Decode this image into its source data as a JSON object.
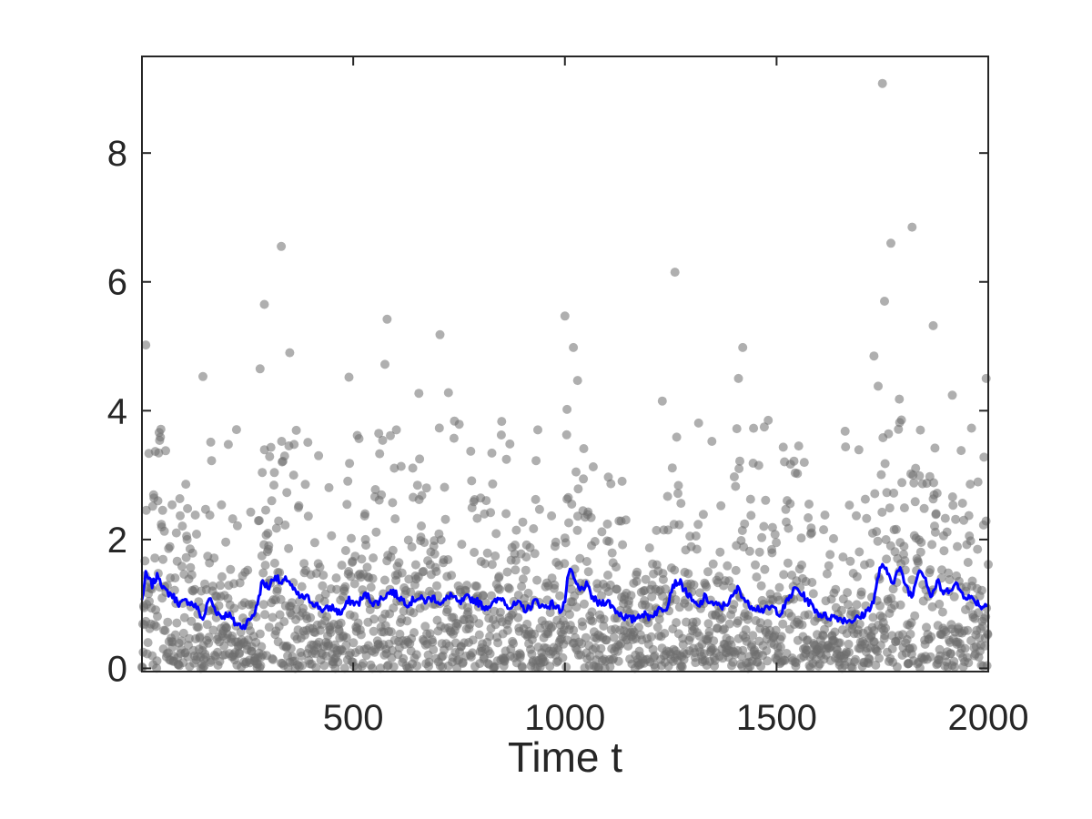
{
  "chart_data": {
    "type": "scatter",
    "title": "",
    "xlabel": "Time t",
    "ylabel": "",
    "xlim": [
      1,
      2000
    ],
    "ylim": [
      -0.05,
      9.5
    ],
    "x_ticks": [
      500,
      1000,
      1500,
      2000
    ],
    "x_tick_labels": [
      "500",
      "1000",
      "1500",
      "2000"
    ],
    "y_ticks": [
      0,
      2,
      4,
      6,
      8
    ],
    "y_tick_labels": [
      "0",
      "2",
      "4",
      "6",
      "8"
    ],
    "grid": false,
    "legend": "none",
    "series": [
      {
        "kind": "scatter",
        "color": "#6e6e6e",
        "opacity": 0.55,
        "n_points": 2000,
        "notable_points": [
          {
            "x": 1750,
            "y": 9.08
          },
          {
            "x": 1820,
            "y": 6.85
          },
          {
            "x": 330,
            "y": 6.55
          },
          {
            "x": 1770,
            "y": 6.6
          },
          {
            "x": 1260,
            "y": 6.15
          },
          {
            "x": 290,
            "y": 5.65
          },
          {
            "x": 1755,
            "y": 5.7
          },
          {
            "x": 580,
            "y": 5.42
          },
          {
            "x": 1000,
            "y": 5.47
          },
          {
            "x": 1870,
            "y": 5.32
          },
          {
            "x": 705,
            "y": 5.18
          },
          {
            "x": 10,
            "y": 5.02
          },
          {
            "x": 1020,
            "y": 4.98
          },
          {
            "x": 1420,
            "y": 4.98
          },
          {
            "x": 350,
            "y": 4.9
          },
          {
            "x": 1730,
            "y": 4.85
          },
          {
            "x": 575,
            "y": 4.72
          },
          {
            "x": 280,
            "y": 4.65
          },
          {
            "x": 145,
            "y": 4.53
          },
          {
            "x": 490,
            "y": 4.52
          },
          {
            "x": 1410,
            "y": 4.5
          },
          {
            "x": 1995,
            "y": 4.5
          },
          {
            "x": 1030,
            "y": 4.47
          },
          {
            "x": 1740,
            "y": 4.38
          },
          {
            "x": 655,
            "y": 4.27
          },
          {
            "x": 725,
            "y": 4.28
          },
          {
            "x": 1915,
            "y": 4.24
          },
          {
            "x": 1230,
            "y": 4.15
          },
          {
            "x": 1790,
            "y": 4.18
          },
          {
            "x": 1005,
            "y": 4.02
          }
        ]
      },
      {
        "kind": "line",
        "color": "#0000ff",
        "description": "running mean of the scatter values",
        "x": [
          1,
          10,
          25,
          40,
          55,
          70,
          90,
          110,
          130,
          145,
          160,
          175,
          190,
          205,
          220,
          240,
          255,
          270,
          285,
          300,
          315,
          330,
          345,
          360,
          375,
          390,
          410,
          430,
          450,
          470,
          490,
          510,
          530,
          550,
          570,
          590,
          610,
          630,
          650,
          670,
          690,
          710,
          730,
          750,
          770,
          790,
          810,
          830,
          850,
          870,
          890,
          910,
          930,
          950,
          970,
          990,
          1000,
          1010,
          1020,
          1035,
          1050,
          1065,
          1080,
          1100,
          1120,
          1140,
          1160,
          1180,
          1200,
          1220,
          1240,
          1255,
          1270,
          1285,
          1300,
          1315,
          1330,
          1350,
          1370,
          1390,
          1410,
          1430,
          1450,
          1470,
          1490,
          1510,
          1530,
          1545,
          1560,
          1580,
          1600,
          1620,
          1640,
          1660,
          1680,
          1700,
          1715,
          1730,
          1745,
          1760,
          1775,
          1790,
          1805,
          1820,
          1835,
          1850,
          1865,
          1880,
          1895,
          1910,
          1925,
          1940,
          1955,
          1970,
          1985,
          2000
        ],
        "y": [
          1.05,
          1.45,
          1.3,
          1.45,
          1.2,
          1.15,
          1.0,
          1.05,
          0.95,
          0.75,
          1.1,
          0.9,
          0.8,
          0.85,
          0.7,
          0.65,
          0.75,
          0.9,
          1.35,
          1.25,
          1.45,
          1.3,
          1.4,
          1.2,
          1.1,
          1.1,
          1.0,
          0.9,
          0.95,
          0.85,
          1.05,
          1.0,
          1.15,
          1.0,
          1.1,
          1.2,
          1.1,
          1.0,
          1.1,
          1.05,
          1.1,
          1.0,
          1.15,
          1.0,
          1.1,
          1.05,
          0.95,
          1.0,
          1.1,
          0.95,
          1.0,
          0.9,
          1.05,
          0.95,
          1.0,
          0.9,
          1.05,
          1.55,
          1.4,
          1.2,
          1.3,
          1.1,
          1.0,
          1.05,
          0.9,
          0.8,
          0.75,
          0.85,
          0.8,
          0.9,
          0.95,
          1.3,
          1.35,
          1.2,
          1.05,
          0.95,
          1.1,
          1.0,
          0.95,
          1.05,
          1.25,
          1.0,
          0.95,
          0.9,
          0.95,
          0.85,
          1.1,
          1.25,
          1.15,
          1.0,
          0.85,
          0.8,
          0.8,
          0.75,
          0.75,
          0.8,
          0.9,
          1.05,
          1.6,
          1.5,
          1.35,
          1.55,
          1.3,
          1.1,
          1.55,
          1.45,
          1.1,
          1.35,
          1.15,
          1.25,
          1.3,
          1.15,
          1.1,
          1.05,
          0.95,
          1.0
        ]
      }
    ]
  }
}
